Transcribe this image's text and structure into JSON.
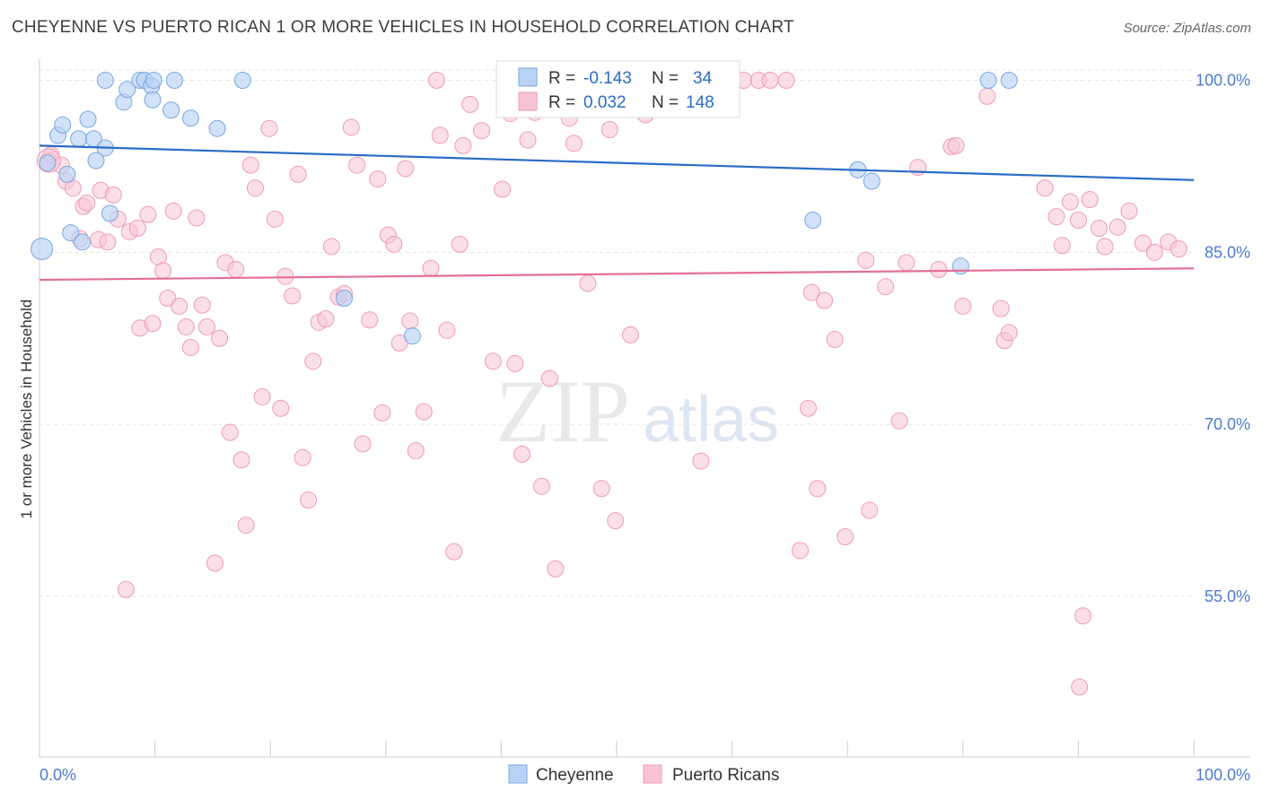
{
  "title": "CHEYENNE VS PUERTO RICAN 1 OR MORE VEHICLES IN HOUSEHOLD CORRELATION CHART",
  "source": "Source: ZipAtlas.com",
  "watermark": {
    "zip": "ZIP",
    "atlas": "atlas"
  },
  "colors": {
    "cheyenne_fill": "#b9d2f4",
    "cheyenne_stroke": "#7aa6e0",
    "cheyenne_line": "#2a6cc8",
    "puerto_fill": "#f8c4d4",
    "puerto_stroke": "#ee9bb5",
    "puerto_line": "#e36f97",
    "tick_text": "#4a7bd0",
    "grid": "#e3e3e3"
  },
  "stats": {
    "r_label": "R =",
    "n_label": "N =",
    "cheyenne": {
      "r": "-0.143",
      "n": "34"
    },
    "puerto": {
      "r": "0.032",
      "n": "148"
    }
  },
  "chart_data": {
    "type": "scatter",
    "title": "CHEYENNE VS PUERTO RICAN 1 OR MORE VEHICLES IN HOUSEHOLD CORRELATION CHART",
    "xlabel": "",
    "ylabel": "1 or more Vehicles in Household",
    "xlim": [
      0,
      100
    ],
    "ylim": [
      41,
      100.9
    ],
    "x_tick_labels": [
      "0.0%",
      "100.0%"
    ],
    "y_ticks": [
      55,
      70,
      85,
      100
    ],
    "y_tick_labels": [
      "55.0%",
      "70.0%",
      "85.0%",
      "100.0%"
    ],
    "grid": true,
    "legend_position": "bottom",
    "series": [
      {
        "name": "Cheyenne",
        "r": -0.143,
        "n": 34,
        "trend": [
          [
            0,
            94.3
          ],
          [
            100,
            91.3
          ]
        ],
        "points": [
          [
            0.2,
            85.3
          ],
          [
            0.7,
            92.8
          ],
          [
            1.6,
            95.2
          ],
          [
            2.0,
            96.1
          ],
          [
            2.4,
            91.8
          ],
          [
            2.7,
            86.7
          ],
          [
            3.4,
            94.9
          ],
          [
            3.7,
            85.9
          ],
          [
            4.2,
            96.6
          ],
          [
            4.7,
            94.9
          ],
          [
            4.9,
            93.0
          ],
          [
            5.7,
            94.1
          ],
          [
            6.1,
            88.4
          ],
          [
            5.7,
            100.0
          ],
          [
            7.3,
            98.1
          ],
          [
            7.6,
            99.2
          ],
          [
            8.7,
            100.0
          ],
          [
            9.1,
            100.0
          ],
          [
            9.7,
            99.5
          ],
          [
            9.8,
            98.3
          ],
          [
            9.9,
            100.0
          ],
          [
            11.7,
            100.0
          ],
          [
            11.4,
            97.4
          ],
          [
            13.1,
            96.7
          ],
          [
            15.4,
            95.8
          ],
          [
            17.6,
            100.0
          ],
          [
            26.4,
            81.0
          ],
          [
            32.3,
            77.7
          ],
          [
            67.0,
            87.8
          ],
          [
            70.9,
            92.2
          ],
          [
            72.1,
            91.2
          ],
          [
            79.8,
            83.8
          ],
          [
            82.2,
            100.0
          ],
          [
            84.0,
            100.0
          ]
        ]
      },
      {
        "name": "Puerto Ricans",
        "r": 0.032,
        "n": 148,
        "trend": [
          [
            0,
            82.6
          ],
          [
            100,
            83.6
          ]
        ],
        "points": [
          [
            0.8,
            93.0
          ],
          [
            1.0,
            93.5
          ],
          [
            1.9,
            92.6
          ],
          [
            2.3,
            91.2
          ],
          [
            2.9,
            90.6
          ],
          [
            3.5,
            86.2
          ],
          [
            3.8,
            89.0
          ],
          [
            4.1,
            89.3
          ],
          [
            5.1,
            86.1
          ],
          [
            5.3,
            90.4
          ],
          [
            5.9,
            85.9
          ],
          [
            6.4,
            90.0
          ],
          [
            6.8,
            87.9
          ],
          [
            7.5,
            55.6
          ],
          [
            7.8,
            86.8
          ],
          [
            8.5,
            87.1
          ],
          [
            8.7,
            78.4
          ],
          [
            9.4,
            88.3
          ],
          [
            9.8,
            78.8
          ],
          [
            10.3,
            84.6
          ],
          [
            10.7,
            83.4
          ],
          [
            11.1,
            81.0
          ],
          [
            11.6,
            88.6
          ],
          [
            12.1,
            80.3
          ],
          [
            12.7,
            78.5
          ],
          [
            13.1,
            76.7
          ],
          [
            13.6,
            88.0
          ],
          [
            14.1,
            80.4
          ],
          [
            14.5,
            78.5
          ],
          [
            15.2,
            57.9
          ],
          [
            15.6,
            77.5
          ],
          [
            16.1,
            84.1
          ],
          [
            16.5,
            69.3
          ],
          [
            17.0,
            83.5
          ],
          [
            17.5,
            66.9
          ],
          [
            17.9,
            61.2
          ],
          [
            18.3,
            92.6
          ],
          [
            18.7,
            90.6
          ],
          [
            19.3,
            72.4
          ],
          [
            19.9,
            95.8
          ],
          [
            20.4,
            87.9
          ],
          [
            20.9,
            71.4
          ],
          [
            21.3,
            82.9
          ],
          [
            21.9,
            81.2
          ],
          [
            22.4,
            91.8
          ],
          [
            22.8,
            67.1
          ],
          [
            23.3,
            63.4
          ],
          [
            23.7,
            75.5
          ],
          [
            24.2,
            78.9
          ],
          [
            24.8,
            79.2
          ],
          [
            25.3,
            85.5
          ],
          [
            25.9,
            81.1
          ],
          [
            26.4,
            81.4
          ],
          [
            27.0,
            95.9
          ],
          [
            27.5,
            92.6
          ],
          [
            28.0,
            68.3
          ],
          [
            28.6,
            79.1
          ],
          [
            29.3,
            91.4
          ],
          [
            29.7,
            71.0
          ],
          [
            30.2,
            86.5
          ],
          [
            30.7,
            85.7
          ],
          [
            31.2,
            77.1
          ],
          [
            31.7,
            92.3
          ],
          [
            32.1,
            79.0
          ],
          [
            32.6,
            67.7
          ],
          [
            33.3,
            71.1
          ],
          [
            33.9,
            83.6
          ],
          [
            34.4,
            100.0
          ],
          [
            34.7,
            95.2
          ],
          [
            35.3,
            78.2
          ],
          [
            35.9,
            58.9
          ],
          [
            36.4,
            85.7
          ],
          [
            36.7,
            94.3
          ],
          [
            37.3,
            97.9
          ],
          [
            38.3,
            95.6
          ],
          [
            39.3,
            75.5
          ],
          [
            40.1,
            90.5
          ],
          [
            40.6,
            100.0
          ],
          [
            40.8,
            97.1
          ],
          [
            41.2,
            75.3
          ],
          [
            41.8,
            67.4
          ],
          [
            42.3,
            94.8
          ],
          [
            42.9,
            97.2
          ],
          [
            43.5,
            64.6
          ],
          [
            44.2,
            74.0
          ],
          [
            44.7,
            57.4
          ],
          [
            45.4,
            100.0
          ],
          [
            45.9,
            96.7
          ],
          [
            46.3,
            94.5
          ],
          [
            47.1,
            100.0
          ],
          [
            47.5,
            82.3
          ],
          [
            47.9,
            98.0
          ],
          [
            48.7,
            64.4
          ],
          [
            49.4,
            95.7
          ],
          [
            49.9,
            61.6
          ],
          [
            50.5,
            100.0
          ],
          [
            51.2,
            77.8
          ],
          [
            52.0,
            100.0
          ],
          [
            52.5,
            97.0
          ],
          [
            53.3,
            100.0
          ],
          [
            54.2,
            100.0
          ],
          [
            55.0,
            100.0
          ],
          [
            55.4,
            100.0
          ],
          [
            56.4,
            99.8
          ],
          [
            57.3,
            66.8
          ],
          [
            58.5,
            100.0
          ],
          [
            59.7,
            100.0
          ],
          [
            61.0,
            100.0
          ],
          [
            62.3,
            100.0
          ],
          [
            63.3,
            100.0
          ],
          [
            64.7,
            100.0
          ],
          [
            65.9,
            59.0
          ],
          [
            66.6,
            71.4
          ],
          [
            66.9,
            81.5
          ],
          [
            67.4,
            64.4
          ],
          [
            68.0,
            80.8
          ],
          [
            68.9,
            77.4
          ],
          [
            69.8,
            60.2
          ],
          [
            71.6,
            84.3
          ],
          [
            71.9,
            62.5
          ],
          [
            73.3,
            82.0
          ],
          [
            74.5,
            70.3
          ],
          [
            75.1,
            84.1
          ],
          [
            76.1,
            92.4
          ],
          [
            77.9,
            83.5
          ],
          [
            79.0,
            94.2
          ],
          [
            79.4,
            94.3
          ],
          [
            80.0,
            80.3
          ],
          [
            82.1,
            98.6
          ],
          [
            83.3,
            80.1
          ],
          [
            83.6,
            77.3
          ],
          [
            84.0,
            78.0
          ],
          [
            87.1,
            90.6
          ],
          [
            88.1,
            88.1
          ],
          [
            88.6,
            85.6
          ],
          [
            89.3,
            89.4
          ],
          [
            90.0,
            87.8
          ],
          [
            91.0,
            89.6
          ],
          [
            91.8,
            87.1
          ],
          [
            92.3,
            85.5
          ],
          [
            93.4,
            87.2
          ],
          [
            94.4,
            88.6
          ],
          [
            95.6,
            85.8
          ],
          [
            96.6,
            85.0
          ],
          [
            97.8,
            85.9
          ],
          [
            98.7,
            85.3
          ],
          [
            90.4,
            53.3
          ],
          [
            90.1,
            47.1
          ]
        ]
      }
    ]
  },
  "legend": {
    "items": [
      "Cheyenne",
      "Puerto Ricans"
    ]
  }
}
